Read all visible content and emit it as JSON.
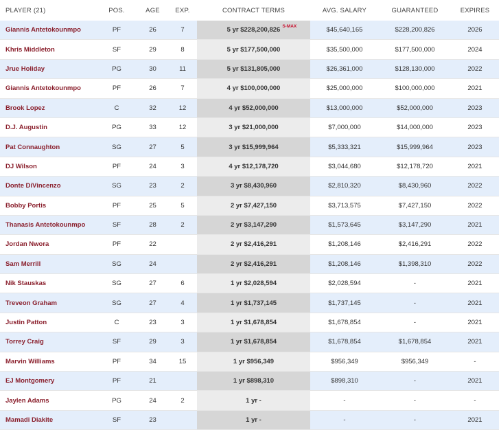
{
  "columns": {
    "player": "PLAYER (21)",
    "pos": "POS.",
    "age": "AGE",
    "exp": "EXP.",
    "terms": "CONTRACT TERMS",
    "avg": "AVG. SALARY",
    "guaranteed": "GUARANTEED",
    "expires": "EXPIRES"
  },
  "rows": [
    {
      "player": "Giannis Antetokounmpo",
      "pos": "PF",
      "age": "26",
      "exp": "7",
      "terms": "5 yr $228,200,826",
      "badge": "S-MAX",
      "avg": "$45,640,165",
      "guaranteed": "$228,200,826",
      "expires": "2026"
    },
    {
      "player": "Khris Middleton",
      "pos": "SF",
      "age": "29",
      "exp": "8",
      "terms": "5 yr $177,500,000",
      "badge": "",
      "avg": "$35,500,000",
      "guaranteed": "$177,500,000",
      "expires": "2024"
    },
    {
      "player": "Jrue Holiday",
      "pos": "PG",
      "age": "30",
      "exp": "11",
      "terms": "5 yr $131,805,000",
      "badge": "",
      "avg": "$26,361,000",
      "guaranteed": "$128,130,000",
      "expires": "2022"
    },
    {
      "player": "Giannis Antetokounmpo",
      "pos": "PF",
      "age": "26",
      "exp": "7",
      "terms": "4 yr $100,000,000",
      "badge": "",
      "avg": "$25,000,000",
      "guaranteed": "$100,000,000",
      "expires": "2021"
    },
    {
      "player": "Brook Lopez",
      "pos": "C",
      "age": "32",
      "exp": "12",
      "terms": "4 yr $52,000,000",
      "badge": "",
      "avg": "$13,000,000",
      "guaranteed": "$52,000,000",
      "expires": "2023"
    },
    {
      "player": "D.J. Augustin",
      "pos": "PG",
      "age": "33",
      "exp": "12",
      "terms": "3 yr $21,000,000",
      "badge": "",
      "avg": "$7,000,000",
      "guaranteed": "$14,000,000",
      "expires": "2023"
    },
    {
      "player": "Pat Connaughton",
      "pos": "SG",
      "age": "27",
      "exp": "5",
      "terms": "3 yr $15,999,964",
      "badge": "",
      "avg": "$5,333,321",
      "guaranteed": "$15,999,964",
      "expires": "2023"
    },
    {
      "player": "DJ Wilson",
      "pos": "PF",
      "age": "24",
      "exp": "3",
      "terms": "4 yr $12,178,720",
      "badge": "",
      "avg": "$3,044,680",
      "guaranteed": "$12,178,720",
      "expires": "2021"
    },
    {
      "player": "Donte DiVincenzo",
      "pos": "SG",
      "age": "23",
      "exp": "2",
      "terms": "3 yr $8,430,960",
      "badge": "",
      "avg": "$2,810,320",
      "guaranteed": "$8,430,960",
      "expires": "2022"
    },
    {
      "player": "Bobby Portis",
      "pos": "PF",
      "age": "25",
      "exp": "5",
      "terms": "2 yr $7,427,150",
      "badge": "",
      "avg": "$3,713,575",
      "guaranteed": "$7,427,150",
      "expires": "2022"
    },
    {
      "player": "Thanasis Antetokounmpo",
      "pos": "SF",
      "age": "28",
      "exp": "2",
      "terms": "2 yr $3,147,290",
      "badge": "",
      "avg": "$1,573,645",
      "guaranteed": "$3,147,290",
      "expires": "2021"
    },
    {
      "player": "Jordan Nwora",
      "pos": "PF",
      "age": "22",
      "exp": "",
      "terms": "2 yr $2,416,291",
      "badge": "",
      "avg": "$1,208,146",
      "guaranteed": "$2,416,291",
      "expires": "2022"
    },
    {
      "player": "Sam Merrill",
      "pos": "SG",
      "age": "24",
      "exp": "",
      "terms": "2 yr $2,416,291",
      "badge": "",
      "avg": "$1,208,146",
      "guaranteed": "$1,398,310",
      "expires": "2022"
    },
    {
      "player": "Nik Stauskas",
      "pos": "SG",
      "age": "27",
      "exp": "6",
      "terms": "1 yr $2,028,594",
      "badge": "",
      "avg": "$2,028,594",
      "guaranteed": "-",
      "expires": "2021"
    },
    {
      "player": "Treveon Graham",
      "pos": "SG",
      "age": "27",
      "exp": "4",
      "terms": "1 yr $1,737,145",
      "badge": "",
      "avg": "$1,737,145",
      "guaranteed": "-",
      "expires": "2021"
    },
    {
      "player": "Justin Patton",
      "pos": "C",
      "age": "23",
      "exp": "3",
      "terms": "1 yr $1,678,854",
      "badge": "",
      "avg": "$1,678,854",
      "guaranteed": "-",
      "expires": "2021"
    },
    {
      "player": "Torrey Craig",
      "pos": "SF",
      "age": "29",
      "exp": "3",
      "terms": "1 yr $1,678,854",
      "badge": "",
      "avg": "$1,678,854",
      "guaranteed": "$1,678,854",
      "expires": "2021"
    },
    {
      "player": "Marvin Williams",
      "pos": "PF",
      "age": "34",
      "exp": "15",
      "terms": "1 yr $956,349",
      "badge": "",
      "avg": "$956,349",
      "guaranteed": "$956,349",
      "expires": "-"
    },
    {
      "player": "EJ Montgomery",
      "pos": "PF",
      "age": "21",
      "exp": "",
      "terms": "1 yr $898,310",
      "badge": "",
      "avg": "$898,310",
      "guaranteed": "-",
      "expires": "2021"
    },
    {
      "player": "Jaylen Adams",
      "pos": "PG",
      "age": "24",
      "exp": "2",
      "terms": "1 yr -",
      "badge": "",
      "avg": "-",
      "guaranteed": "-",
      "expires": "-"
    },
    {
      "player": "Mamadi Diakite",
      "pos": "SF",
      "age": "23",
      "exp": "",
      "terms": "1 yr -",
      "badge": "",
      "avg": "-",
      "guaranteed": "-",
      "expires": "2021"
    }
  ]
}
